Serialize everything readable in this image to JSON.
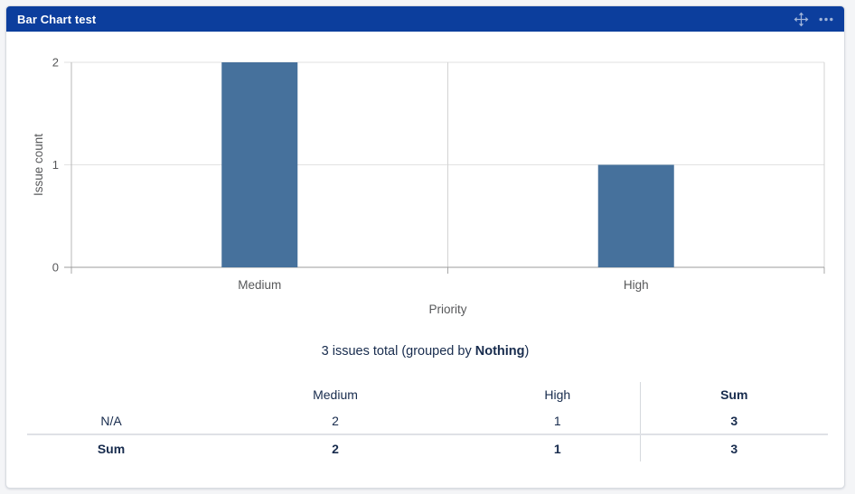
{
  "widget": {
    "title": "Bar Chart test",
    "header_color": "#0c3e9d",
    "icons": {
      "move": "move",
      "more": "more-options"
    }
  },
  "chart_data": {
    "type": "bar",
    "categories": [
      "Medium",
      "High"
    ],
    "values": [
      2,
      1
    ],
    "title": "",
    "xlabel": "Priority",
    "ylabel": "Issue count",
    "ylim": [
      0,
      2
    ],
    "yticks": [
      0,
      1,
      2
    ],
    "grid": true,
    "legend": false,
    "bar_color": "#46719c"
  },
  "summary": {
    "prefix": "3 issues total (grouped by ",
    "group": "Nothing",
    "suffix": ")"
  },
  "summary_table": {
    "columns": [
      "",
      "Medium",
      "High",
      "Sum"
    ],
    "rows": [
      {
        "label": "N/A",
        "values": [
          "2",
          "1",
          "3"
        ]
      },
      {
        "label": "Sum",
        "values": [
          "2",
          "1",
          "3"
        ]
      }
    ]
  }
}
